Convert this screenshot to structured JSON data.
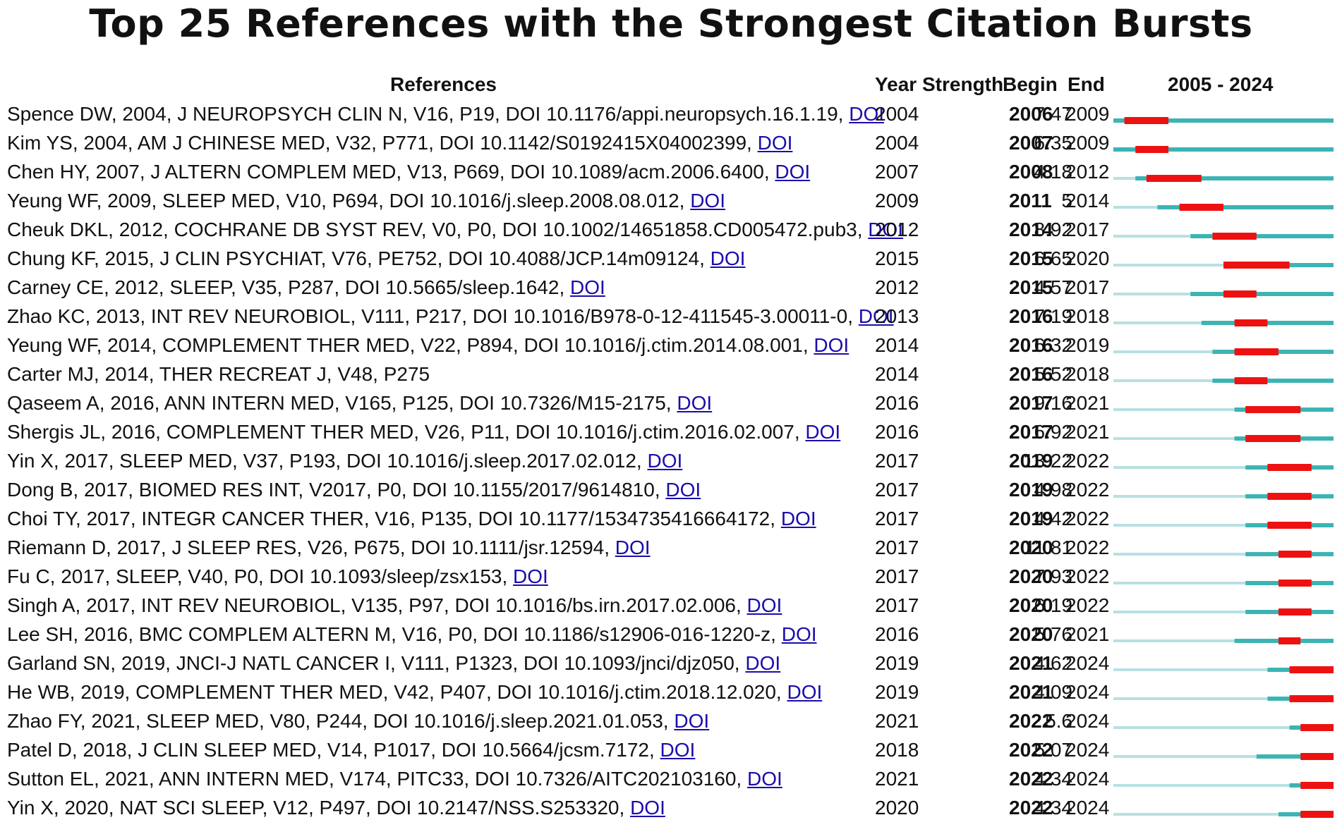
{
  "chart_data": {
    "type": "table",
    "title": "Top 25 References with the Strongest Citation Bursts",
    "columns": [
      "References",
      "Year",
      "Strength",
      "Begin",
      "End",
      "2005 - 2024"
    ],
    "range": [
      2005,
      2024
    ],
    "link_label": "DOI",
    "colors": {
      "outside": "#b8e0e2",
      "active": "#3cb4b4",
      "burst": "#ee1111"
    },
    "rows": [
      {
        "ref": "Spence DW, 2004, J NEUROPSYCH CLIN N, V16, P19, DOI 10.1176/appi.neuropsych.16.1.19,",
        "doi": true,
        "year": 2004,
        "strength": "7.47",
        "begin": 2006,
        "end": 2009
      },
      {
        "ref": "Kim YS, 2004, AM J CHINESE MED, V32, P771, DOI 10.1142/S0192415X04002399,",
        "doi": true,
        "year": 2004,
        "strength": "6.35",
        "begin": 2007,
        "end": 2009
      },
      {
        "ref": "Chen HY, 2007, J ALTERN COMPLEM MED, V13, P669, DOI 10.1089/acm.2006.6400,",
        "doi": true,
        "year": 2007,
        "strength": "4.18",
        "begin": 2008,
        "end": 2012
      },
      {
        "ref": "Yeung WF, 2009, SLEEP MED, V10, P694, DOI 10.1016/j.sleep.2008.08.012,",
        "doi": true,
        "year": 2009,
        "strength": "5",
        "begin": 2011,
        "end": 2014
      },
      {
        "ref": "Cheuk DKL, 2012, COCHRANE DB SYST REV, V0, P0, DOI 10.1002/14651858.CD005472.pub3,",
        "doi": true,
        "year": 2012,
        "strength": "8.92",
        "begin": 2014,
        "end": 2017
      },
      {
        "ref": "Chung KF, 2015, J CLIN PSYCHIAT, V76, PE752, DOI 10.4088/JCP.14m09124,",
        "doi": true,
        "year": 2015,
        "strength": "6.65",
        "begin": 2015,
        "end": 2020
      },
      {
        "ref": "Carney CE, 2012, SLEEP, V35, P287, DOI 10.5665/sleep.1642,",
        "doi": true,
        "year": 2012,
        "strength": "4.57",
        "begin": 2015,
        "end": 2017
      },
      {
        "ref": "Zhao KC, 2013, INT REV NEUROBIOL, V111, P217, DOI 10.1016/B978-0-12-411545-3.00011-0,",
        "doi": true,
        "year": 2013,
        "strength": "7.19",
        "begin": 2016,
        "end": 2018
      },
      {
        "ref": "Yeung WF, 2014, COMPLEMENT THER MED, V22, P894, DOI 10.1016/j.ctim.2014.08.001,",
        "doi": true,
        "year": 2014,
        "strength": "6.32",
        "begin": 2016,
        "end": 2019
      },
      {
        "ref": "Carter MJ, 2014, THER RECREAT J, V48, P275",
        "doi": false,
        "year": 2014,
        "strength": "5.52",
        "begin": 2016,
        "end": 2018
      },
      {
        "ref": "Qaseem A, 2016, ANN INTERN MED, V165, P125, DOI 10.7326/M15-2175,",
        "doi": true,
        "year": 2016,
        "strength": "9.16",
        "begin": 2017,
        "end": 2021
      },
      {
        "ref": "Shergis JL, 2016, COMPLEMENT THER MED, V26, P11, DOI 10.1016/j.ctim.2016.02.007,",
        "doi": true,
        "year": 2016,
        "strength": "6.92",
        "begin": 2017,
        "end": 2021
      },
      {
        "ref": "Yin X, 2017, SLEEP MED, V37, P193, DOI 10.1016/j.sleep.2017.02.012,",
        "doi": true,
        "year": 2017,
        "strength": "13.22",
        "begin": 2019,
        "end": 2022
      },
      {
        "ref": "Dong B, 2017, BIOMED RES INT, V2017, P0, DOI 10.1155/2017/9614810,",
        "doi": true,
        "year": 2017,
        "strength": "4.98",
        "begin": 2019,
        "end": 2022
      },
      {
        "ref": "Choi TY, 2017, INTEGR CANCER THER, V16, P135, DOI 10.1177/1534735416664172,",
        "doi": true,
        "year": 2017,
        "strength": "4.42",
        "begin": 2019,
        "end": 2022
      },
      {
        "ref": "Riemann D, 2017, J SLEEP RES, V26, P675, DOI 10.1111/jsr.12594,",
        "doi": true,
        "year": 2017,
        "strength": "11.81",
        "begin": 2020,
        "end": 2022
      },
      {
        "ref": "Fu C, 2017, SLEEP, V40, P0, DOI 10.1093/sleep/zsx153,",
        "doi": true,
        "year": 2017,
        "strength": "7.93",
        "begin": 2020,
        "end": 2022
      },
      {
        "ref": "Singh A, 2017, INT REV NEUROBIOL, V135, P97, DOI 10.1016/bs.irn.2017.02.006,",
        "doi": true,
        "year": 2017,
        "strength": "6.19",
        "begin": 2020,
        "end": 2022
      },
      {
        "ref": "Lee SH, 2016, BMC COMPLEM ALTERN M, V16, P0, DOI 10.1186/s12906-016-1220-z,",
        "doi": true,
        "year": 2016,
        "strength": "5.76",
        "begin": 2020,
        "end": 2021
      },
      {
        "ref": "Garland SN, 2019, JNCI-J NATL CANCER I, V111, P1323, DOI 10.1093/jnci/djz050,",
        "doi": true,
        "year": 2019,
        "strength": "4.62",
        "begin": 2021,
        "end": 2024
      },
      {
        "ref": "He WB, 2019, COMPLEMENT THER MED, V42, P407, DOI 10.1016/j.ctim.2018.12.020,",
        "doi": true,
        "year": 2019,
        "strength": "4.09",
        "begin": 2021,
        "end": 2024
      },
      {
        "ref": "Zhao FY, 2021, SLEEP MED, V80, P244, DOI 10.1016/j.sleep.2021.01.053,",
        "doi": true,
        "year": 2021,
        "strength": "5.6",
        "begin": 2022,
        "end": 2024
      },
      {
        "ref": "Patel D, 2018, J CLIN SLEEP MED, V14, P1017, DOI 10.5664/jcsm.7172,",
        "doi": true,
        "year": 2018,
        "strength": "5.07",
        "begin": 2022,
        "end": 2024
      },
      {
        "ref": "Sutton EL, 2021, ANN INTERN MED, V174, PITC33, DOI 10.7326/AITC202103160,",
        "doi": true,
        "year": 2021,
        "strength": "4.34",
        "begin": 2022,
        "end": 2024
      },
      {
        "ref": "Yin X, 2020, NAT SCI SLEEP, V12, P497, DOI 10.2147/NSS.S253320,",
        "doi": true,
        "year": 2020,
        "strength": "4.34",
        "begin": 2022,
        "end": 2024
      }
    ]
  }
}
